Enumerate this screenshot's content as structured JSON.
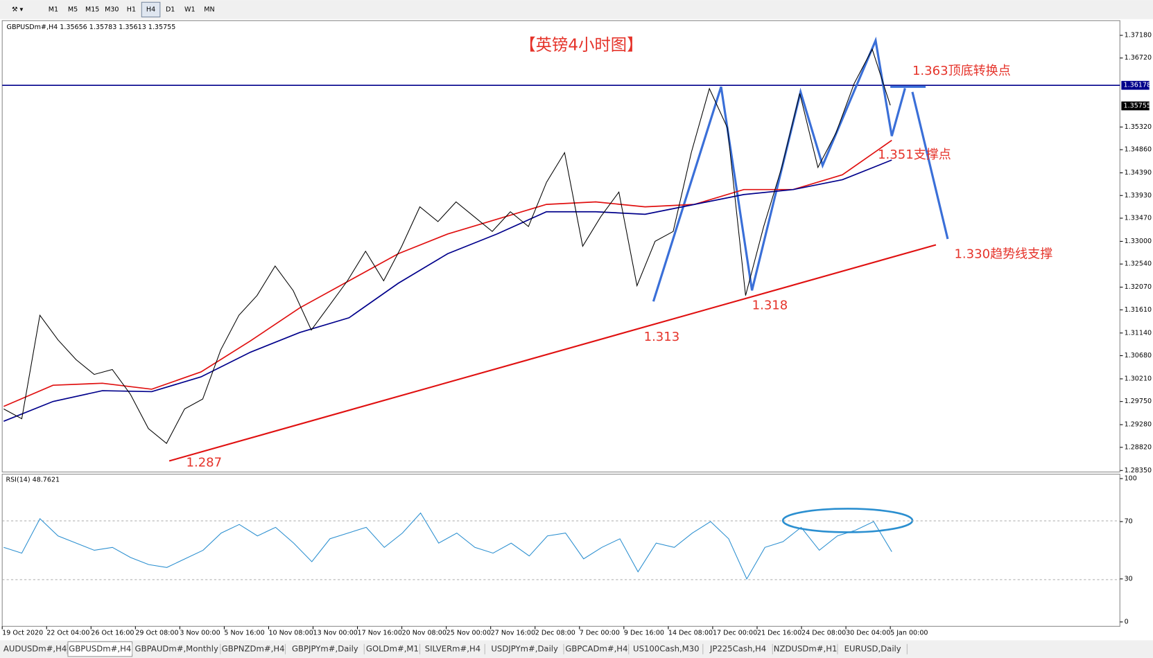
{
  "toolbar": {
    "timeframes": [
      "M1",
      "M5",
      "M15",
      "M30",
      "H1",
      "H4",
      "D1",
      "W1",
      "MN"
    ],
    "active": "H4"
  },
  "chart": {
    "header": "GBPUSDm#,H4  1.35656 1.35783 1.35613 1.35755",
    "title": "【英镑4小时图】",
    "annotations": [
      "1.363顶底转换点",
      "1.351支撑点",
      "1.330趋势线支撑",
      "1.313",
      "1.318",
      "1.287"
    ],
    "level_labels": [
      "1.36178",
      "1.35755"
    ],
    "price_ticks": [
      {
        "value": 1.3718,
        "label": "1.37180"
      },
      {
        "value": 1.3672,
        "label": "1.36720"
      },
      {
        "value": 1.3532,
        "label": "1.35320"
      },
      {
        "value": 1.3486,
        "label": "1.34860"
      },
      {
        "value": 1.3439,
        "label": "1.34390"
      },
      {
        "value": 1.3393,
        "label": "1.33930"
      },
      {
        "value": 1.3347,
        "label": "1.33470"
      },
      {
        "value": 1.33,
        "label": "1.33000"
      },
      {
        "value": 1.3254,
        "label": "1.32540"
      },
      {
        "value": 1.3207,
        "label": "1.32070"
      },
      {
        "value": 1.3161,
        "label": "1.31610"
      },
      {
        "value": 1.3114,
        "label": "1.31140"
      },
      {
        "value": 1.3068,
        "label": "1.30680"
      },
      {
        "value": 1.3021,
        "label": "1.30210"
      },
      {
        "value": 1.2975,
        "label": "1.29750"
      },
      {
        "value": 1.2928,
        "label": "1.29280"
      },
      {
        "value": 1.2882,
        "label": "1.28820"
      },
      {
        "value": 1.2835,
        "label": "1.28350"
      }
    ],
    "closes": [
      1.296,
      1.294,
      1.315,
      1.31,
      1.306,
      1.303,
      1.304,
      1.299,
      1.292,
      1.289,
      1.296,
      1.298,
      1.308,
      1.315,
      1.319,
      1.325,
      1.32,
      1.312,
      1.317,
      1.322,
      1.328,
      1.322,
      1.329,
      1.337,
      1.334,
      1.338,
      1.335,
      1.332,
      1.336,
      1.333,
      1.342,
      1.348,
      1.329,
      1.335,
      1.34,
      1.321,
      1.33,
      1.332,
      1.348,
      1.361,
      1.353,
      1.319,
      1.333,
      1.345,
      1.36,
      1.345,
      1.352,
      1.362,
      1.369,
      1.3576
    ],
    "ma_red": [
      1.2965,
      1.3008,
      1.3012,
      1.3,
      1.3035,
      1.3098,
      1.3165,
      1.322,
      1.3275,
      1.3315,
      1.3345,
      1.3375,
      1.338,
      1.337,
      1.3375,
      1.3405,
      1.3405,
      1.3435,
      1.3505
    ],
    "ma_blue": [
      1.2935,
      1.2975,
      1.2997,
      1.2995,
      1.3025,
      1.3075,
      1.3115,
      1.3145,
      1.3215,
      1.3275,
      1.3315,
      1.336,
      1.336,
      1.3355,
      1.3375,
      1.3395,
      1.3405,
      1.3425,
      1.3465
    ]
  },
  "rsi": {
    "label": "RSI(14) 48.7621",
    "ticks": [
      100,
      70,
      30,
      0
    ],
    "values": [
      52,
      48,
      72,
      60,
      55,
      50,
      52,
      45,
      40,
      38,
      44,
      50,
      62,
      68,
      60,
      66,
      55,
      42,
      58,
      62,
      66,
      52,
      62,
      76,
      55,
      62,
      52,
      48,
      55,
      46,
      60,
      62,
      44,
      52,
      58,
      35,
      55,
      52,
      62,
      70,
      58,
      30,
      52,
      56,
      66,
      50,
      60,
      64,
      70,
      49
    ]
  },
  "time_axis": [
    "19 Oct 2020",
    "22 Oct 04:00",
    "26 Oct 16:00",
    "29 Oct 08:00",
    "3 Nov 00:00",
    "5 Nov 16:00",
    "10 Nov 08:00",
    "13 Nov 00:00",
    "17 Nov 16:00",
    "20 Nov 08:00",
    "25 Nov 00:00",
    "27 Nov 16:00",
    "2 Dec 08:00",
    "7 Dec 00:00",
    "9 Dec 16:00",
    "14 Dec 08:00",
    "17 Dec 00:00",
    "21 Dec 16:00",
    "24 Dec 08:00",
    "30 Dec 04:00",
    "5 Jan 00:00"
  ],
  "tabs": [
    "AUDUSDm#,H4",
    "GBPUSDm#,H4",
    "GBPAUDm#,Monthly",
    "GBPNZDm#,H4",
    "GBPJPYm#,Daily",
    "GOLDm#,M1",
    "SILVERm#,H4",
    "USDJPYm#,Daily",
    "GBPCADm#,H4",
    "US100Cash,M30",
    "JP225Cash,H4",
    "NZDUSDm#,H1",
    "EURUSD,Daily"
  ],
  "active_tab": "GBPUSDm#,H4"
}
